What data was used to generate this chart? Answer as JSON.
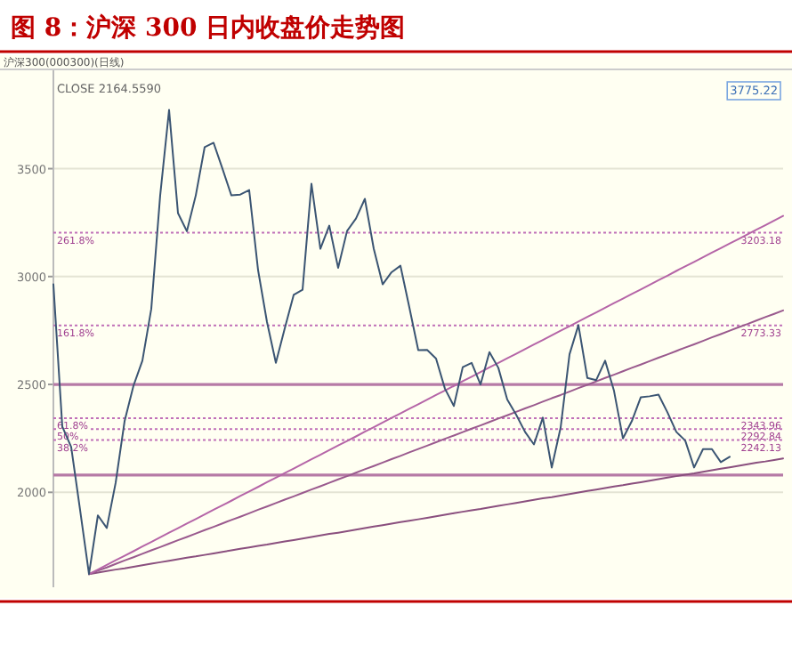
{
  "chart_data": {
    "type": "line",
    "title": "图 8：沪深 300 日内收盘价走势图",
    "annotations": [
      "沪深300(000300)(日线)",
      "CLOSE 2164.5590",
      "3775.22",
      "261.8%",
      "161.8%",
      "61.8%",
      "50%",
      "38.2%"
    ],
    "categories": [
      null,
      null,
      null,
      null,
      null,
      null,
      null,
      null,
      null,
      null,
      null,
      null,
      null,
      null,
      null,
      null,
      null,
      null,
      null,
      null,
      null,
      null,
      null,
      null,
      null,
      null,
      null,
      null,
      null,
      null,
      null,
      null,
      null,
      null,
      null,
      null,
      null,
      null,
      null,
      null,
      null,
      null,
      null,
      null,
      null,
      null,
      null,
      null,
      null,
      null,
      null,
      null,
      null,
      null,
      null,
      null,
      null,
      null,
      null,
      null,
      null,
      null,
      null,
      null,
      null,
      null,
      null,
      null,
      null,
      null,
      null,
      null,
      null,
      null,
      null,
      null,
      null,
      null,
      null,
      null,
      null,
      null,
      null
    ],
    "ylim": [
      1560,
      3960
    ],
    "yticks": [
      2000,
      2500,
      3000,
      3500
    ],
    "tick_labels": "y",
    "grid": "y",
    "series": [
      {
        "color": "#3b5573",
        "values": [
          2964,
          2305,
          2210,
          1918,
          1621,
          1893,
          1835,
          2045,
          2330,
          2494,
          2610,
          2850,
          3376,
          3772,
          3294,
          3210,
          3376,
          3600,
          3620,
          3500,
          3376,
          3380,
          3401,
          3030,
          2790,
          2600,
          2760,
          2915,
          2939,
          3430,
          3129,
          3236,
          3040,
          3211,
          3269,
          3360,
          3129,
          2964,
          3020,
          3050,
          2857,
          2659,
          2660,
          2620,
          2480,
          2400,
          2580,
          2600,
          2500,
          2650,
          2577,
          2430,
          2360,
          2280,
          2222,
          2346,
          2115,
          2300,
          2640,
          2775,
          2530,
          2520,
          2610,
          2470,
          2250,
          2330,
          2440,
          2445,
          2453,
          2371,
          2280,
          2240,
          2115,
          2200,
          2200,
          2140,
          2164.56,
          null,
          null,
          null,
          null,
          null,
          null
        ]
      },
      {
        "color": "#b565a7",
        "values": [
          null,
          null,
          null,
          null,
          1621,
          1642,
          1664,
          1685,
          1706,
          1727,
          1749,
          1770,
          1791,
          1813,
          1834,
          1855,
          1876,
          1898,
          1919,
          1940,
          1961,
          1983,
          2004,
          2025,
          2047,
          2068,
          2089,
          2110,
          2132,
          2153,
          2174,
          2196,
          2217,
          2238,
          2259,
          2281,
          2302,
          2323,
          2345,
          2366,
          2387,
          2408,
          2430,
          2451,
          2472,
          2493,
          2515,
          2536,
          2557,
          2579,
          2600,
          2621,
          2642,
          2664,
          2685,
          2706,
          2728,
          2749,
          2770,
          2791,
          2813,
          2834,
          2855,
          2877,
          2898,
          2919,
          2940,
          2962,
          2983,
          3004,
          3026,
          3047,
          3068,
          3089,
          3111,
          3132,
          3153,
          3174,
          3196,
          3217,
          3238,
          3260,
          3281
        ]
      },
      {
        "color": "#9a5a8e",
        "values": [
          null,
          null,
          null,
          null,
          1621,
          1637,
          1652,
          1668,
          1684,
          1699,
          1715,
          1731,
          1746,
          1762,
          1778,
          1793,
          1809,
          1825,
          1840,
          1856,
          1872,
          1887,
          1903,
          1919,
          1934,
          1950,
          1966,
          1981,
          1997,
          2013,
          2028,
          2044,
          2060,
          2075,
          2091,
          2107,
          2122,
          2138,
          2154,
          2169,
          2185,
          2201,
          2216,
          2232,
          2248,
          2263,
          2279,
          2295,
          2310,
          2326,
          2342,
          2357,
          2373,
          2389,
          2404,
          2420,
          2436,
          2451,
          2467,
          2483,
          2498,
          2514,
          2530,
          2545,
          2561,
          2577,
          2592,
          2608,
          2624,
          2639,
          2655,
          2671,
          2686,
          2702,
          2718,
          2733,
          2749,
          2765,
          2780,
          2796,
          2812,
          2827,
          2843
        ]
      },
      {
        "color": "#8a4f7e",
        "values": [
          null,
          null,
          null,
          null,
          1621,
          1628,
          1635,
          1642,
          1648,
          1655,
          1662,
          1669,
          1676,
          1683,
          1690,
          1697,
          1703,
          1710,
          1717,
          1724,
          1731,
          1738,
          1745,
          1752,
          1758,
          1765,
          1772,
          1779,
          1786,
          1793,
          1800,
          1807,
          1813,
          1820,
          1827,
          1834,
          1841,
          1848,
          1855,
          1862,
          1868,
          1875,
          1882,
          1889,
          1896,
          1903,
          1910,
          1917,
          1923,
          1930,
          1937,
          1944,
          1951,
          1958,
          1965,
          1972,
          1978,
          1985,
          1992,
          1999,
          2006,
          2013,
          2020,
          2027,
          2033,
          2040,
          2047,
          2054,
          2061,
          2068,
          2075,
          2082,
          2088,
          2095,
          2102,
          2109,
          2116,
          2123,
          2130,
          2137,
          2143,
          2150,
          2157
        ]
      }
    ],
    "ref_lines": [
      {
        "axis": "y",
        "value": 3203.18,
        "label": "3203.18",
        "line_style": "dotted",
        "color": "#c070b8"
      },
      {
        "axis": "y",
        "value": 2773.33,
        "label": "2773.33",
        "line_style": "dotted",
        "color": "#c070b8"
      },
      {
        "axis": "y",
        "value": 2500,
        "label": null,
        "line_style": "solid",
        "color": "#b67aa6"
      },
      {
        "axis": "y",
        "value": 2343.96,
        "label": "2343.96",
        "line_style": "dotted",
        "color": "#c070b8"
      },
      {
        "axis": "y",
        "value": 2292.84,
        "label": "2292.84",
        "line_style": "dotted",
        "color": "#c070b8"
      },
      {
        "axis": "y",
        "value": 2242.13,
        "label": "2242.13",
        "line_style": "dotted",
        "color": "#c070b8"
      },
      {
        "axis": "y",
        "value": 2080,
        "label": null,
        "line_style": "solid",
        "color": "#b67aa6"
      }
    ]
  }
}
